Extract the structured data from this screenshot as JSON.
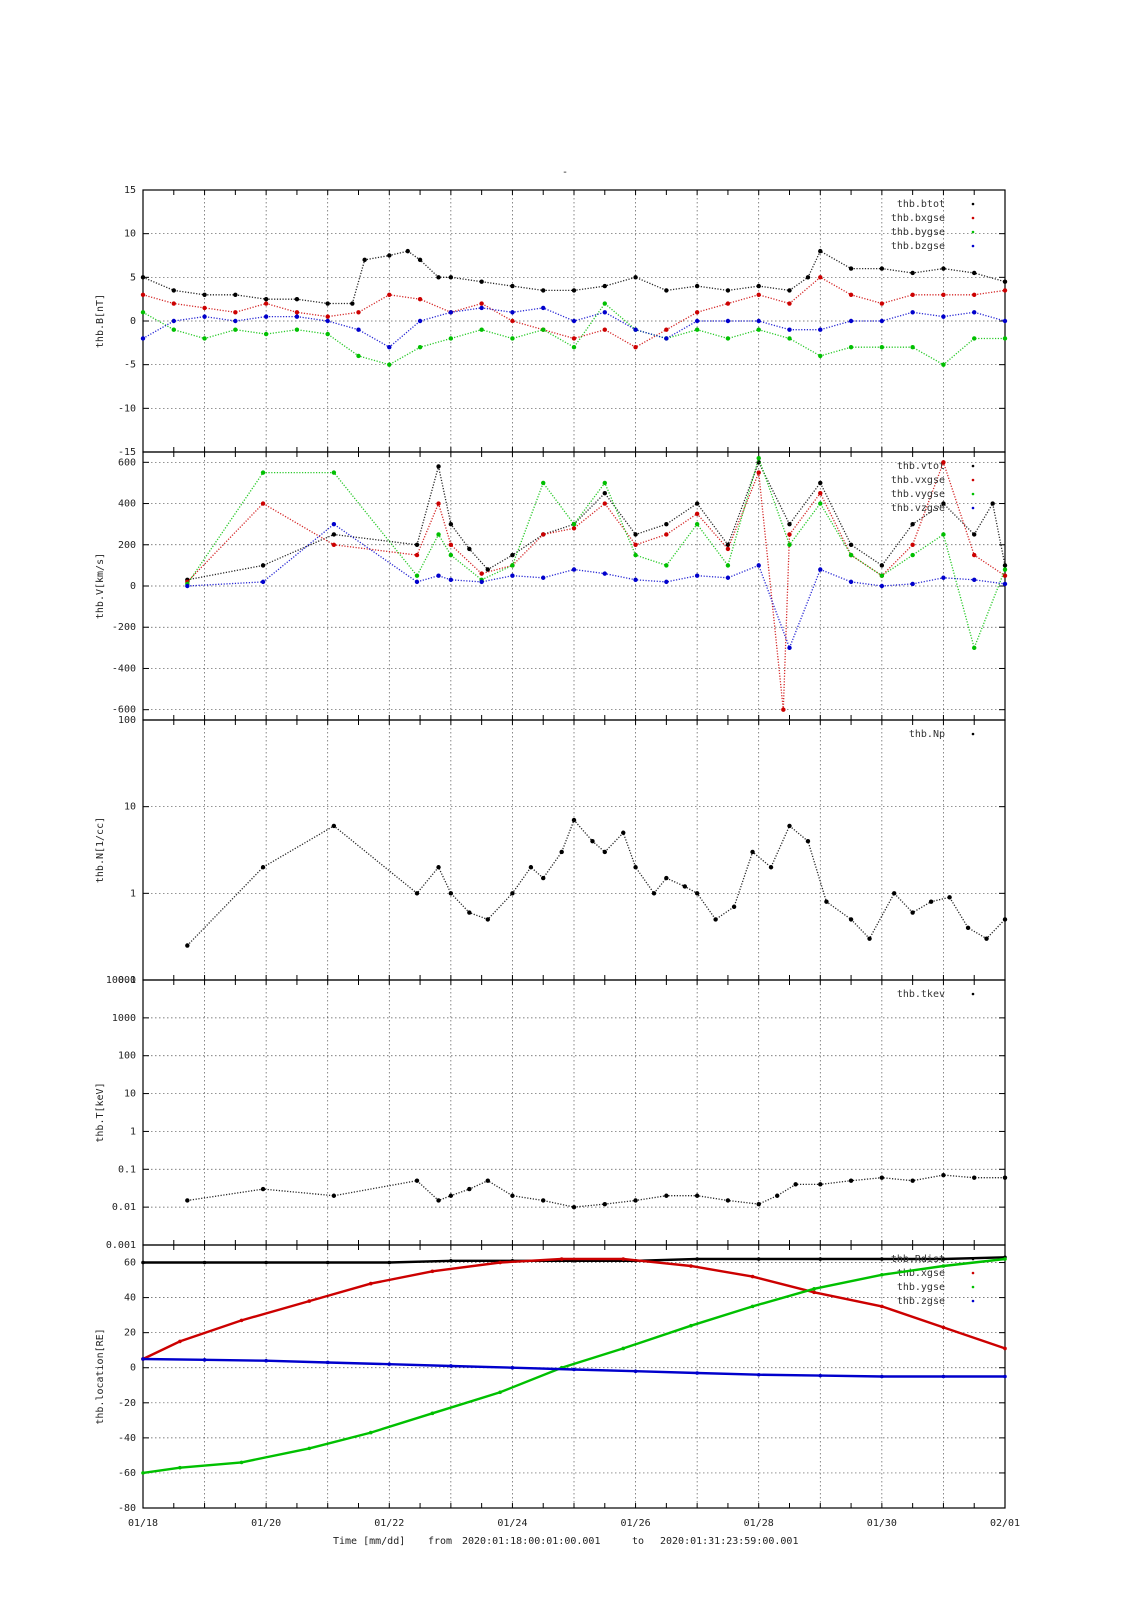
{
  "figure": {
    "top_title": "-",
    "footer": {
      "time_label": "Time [mm/dd]",
      "from_label": "from",
      "from_value": "2020:01:18:00:01:00.001",
      "to_label": "to",
      "to_value": "2020:01:31:23:59:00.001"
    },
    "x_tick_labels": [
      "01/18",
      "01/20",
      "01/22",
      "01/24",
      "01/26",
      "01/28",
      "01/30",
      "02/01"
    ]
  },
  "colors": {
    "black": "#000000",
    "red": "#cc0000",
    "green": "#00c000",
    "blue": "#0000cc",
    "grid": "#555555"
  },
  "chart_data": [
    {
      "type": "scatter",
      "ylabel": "thb.B[nT]",
      "ylim": [
        -15,
        15
      ],
      "yscale": "linear",
      "yticks": [
        15,
        10,
        5,
        0,
        -5,
        -10,
        -15
      ],
      "xlim_days": [
        18,
        32
      ],
      "grid": true,
      "legend_position": "top-right",
      "series": [
        {
          "name": "thb.btot",
          "color": "black",
          "x": [
            18.0,
            18.5,
            19.0,
            19.5,
            20.0,
            20.5,
            21.0,
            21.4,
            21.6,
            22.0,
            22.3,
            22.5,
            22.8,
            23.0,
            23.5,
            24.0,
            24.5,
            25.0,
            25.5,
            26.0,
            26.5,
            27.0,
            27.5,
            28.0,
            28.5,
            28.8,
            29.0,
            29.5,
            30.0,
            30.5,
            31.0,
            31.5,
            32.0
          ],
          "y": [
            5,
            3.5,
            3,
            3,
            2.5,
            2.5,
            2,
            2,
            7,
            7.5,
            8,
            7,
            5,
            5,
            4.5,
            4,
            3.5,
            3.5,
            4,
            5,
            3.5,
            4,
            3.5,
            4,
            3.5,
            5,
            8,
            6,
            6,
            5.5,
            6,
            5.5,
            4.5
          ]
        },
        {
          "name": "thb.bxgse",
          "color": "red",
          "x": [
            18.0,
            18.5,
            19.0,
            19.5,
            20.0,
            20.5,
            21.0,
            21.5,
            22.0,
            22.5,
            23.0,
            23.5,
            24.0,
            24.5,
            25.0,
            25.5,
            26.0,
            26.5,
            27.0,
            27.5,
            28.0,
            28.5,
            29.0,
            29.5,
            30.0,
            30.5,
            31.0,
            31.5,
            32.0
          ],
          "y": [
            3,
            2,
            1.5,
            1,
            2,
            1,
            0.5,
            1,
            3,
            2.5,
            1,
            2,
            0,
            -1,
            -2,
            -1,
            -3,
            -1,
            1,
            2,
            3,
            2,
            5,
            3,
            2,
            3,
            3,
            3,
            3.5
          ]
        },
        {
          "name": "thb.bygse",
          "color": "green",
          "x": [
            18.0,
            18.5,
            19.0,
            19.5,
            20.0,
            20.5,
            21.0,
            21.5,
            22.0,
            22.5,
            23.0,
            23.5,
            24.0,
            24.5,
            25.0,
            25.5,
            26.0,
            26.5,
            27.0,
            27.5,
            28.0,
            28.5,
            29.0,
            29.5,
            30.0,
            30.5,
            31.0,
            31.5,
            32.0
          ],
          "y": [
            1,
            -1,
            -2,
            -1,
            -1.5,
            -1,
            -1.5,
            -4,
            -5,
            -3,
            -2,
            -1,
            -2,
            -1,
            -3,
            2,
            -1,
            -2,
            -1,
            -2,
            -1,
            -2,
            -4,
            -3,
            -3,
            -3,
            -5,
            -2,
            -2
          ]
        },
        {
          "name": "thb.bzgse",
          "color": "blue",
          "x": [
            18.0,
            18.5,
            19.0,
            19.5,
            20.0,
            20.5,
            21.0,
            21.5,
            22.0,
            22.5,
            23.0,
            23.5,
            24.0,
            24.5,
            25.0,
            25.5,
            26.0,
            26.5,
            27.0,
            27.5,
            28.0,
            28.5,
            29.0,
            29.5,
            30.0,
            30.5,
            31.0,
            31.5,
            32.0
          ],
          "y": [
            -2,
            0,
            0.5,
            0,
            0.5,
            0.5,
            0,
            -1,
            -3,
            0,
            1,
            1.5,
            1,
            1.5,
            0,
            1,
            -1,
            -2,
            0,
            0,
            0,
            -1,
            -1,
            0,
            0,
            1,
            0.5,
            1,
            0
          ]
        }
      ]
    },
    {
      "type": "scatter",
      "ylabel": "thb.V[km/s]",
      "ylim": [
        -650,
        650
      ],
      "yscale": "linear",
      "yticks": [
        600,
        400,
        200,
        0,
        -200,
        -400,
        -600
      ],
      "xlim_days": [
        18,
        32
      ],
      "grid": true,
      "legend_position": "top-right",
      "series": [
        {
          "name": "thb.vtot",
          "color": "black",
          "x": [
            18.72,
            19.95,
            21.1,
            22.45,
            22.8,
            23.0,
            23.3,
            23.6,
            24.0,
            24.5,
            25.0,
            25.5,
            26.0,
            26.5,
            27.0,
            27.5,
            28.0,
            28.5,
            29.0,
            29.5,
            30.0,
            30.5,
            31.0,
            31.5,
            31.8,
            32.0
          ],
          "y": [
            30,
            100,
            250,
            200,
            580,
            300,
            180,
            80,
            150,
            250,
            300,
            450,
            250,
            300,
            400,
            200,
            600,
            300,
            500,
            200,
            100,
            300,
            400,
            250,
            400,
            100
          ]
        },
        {
          "name": "thb.vxgse",
          "color": "red",
          "x": [
            18.72,
            19.95,
            21.1,
            22.45,
            22.8,
            23.0,
            23.5,
            24.0,
            24.5,
            25.0,
            25.5,
            26.0,
            26.5,
            27.0,
            27.5,
            28.0,
            28.4,
            28.5,
            29.0,
            29.5,
            30.0,
            30.5,
            31.0,
            31.5,
            32.0
          ],
          "y": [
            20,
            400,
            200,
            150,
            400,
            200,
            60,
            100,
            250,
            280,
            400,
            200,
            250,
            350,
            180,
            550,
            -600,
            250,
            450,
            150,
            50,
            200,
            600,
            150,
            50
          ]
        },
        {
          "name": "thb.vygse",
          "color": "green",
          "x": [
            18.72,
            19.95,
            21.1,
            22.45,
            22.8,
            23.0,
            23.5,
            24.0,
            24.5,
            25.0,
            25.5,
            26.0,
            26.5,
            27.0,
            27.5,
            28.0,
            28.5,
            29.0,
            29.5,
            30.0,
            30.5,
            31.0,
            31.5,
            32.0
          ],
          "y": [
            10,
            550,
            550,
            50,
            250,
            150,
            30,
            100,
            500,
            300,
            500,
            150,
            100,
            300,
            100,
            620,
            200,
            400,
            150,
            50,
            150,
            250,
            -300,
            80
          ]
        },
        {
          "name": "thb.vzgse",
          "color": "blue",
          "x": [
            18.72,
            19.95,
            21.1,
            22.45,
            22.8,
            23.0,
            23.5,
            24.0,
            24.5,
            25.0,
            25.5,
            26.0,
            26.5,
            27.0,
            27.5,
            28.0,
            28.5,
            29.0,
            29.5,
            30.0,
            30.5,
            31.0,
            31.5,
            32.0
          ],
          "y": [
            0,
            20,
            300,
            20,
            50,
            30,
            20,
            50,
            40,
            80,
            60,
            30,
            20,
            50,
            40,
            100,
            -300,
            80,
            20,
            0,
            10,
            40,
            30,
            10
          ]
        }
      ]
    },
    {
      "type": "scatter",
      "ylabel": "thb.N[1/cc]",
      "ylim": [
        0.1,
        100
      ],
      "yscale": "log",
      "yticks": [
        100,
        10,
        1,
        0.1
      ],
      "xlim_days": [
        18,
        32
      ],
      "grid": true,
      "legend_position": "top-right",
      "series": [
        {
          "name": "thb.Np",
          "color": "black",
          "x": [
            18.72,
            19.95,
            21.1,
            22.45,
            22.8,
            23.0,
            23.3,
            23.6,
            24.0,
            24.3,
            24.5,
            24.8,
            25.0,
            25.3,
            25.5,
            25.8,
            26.0,
            26.3,
            26.5,
            26.8,
            27.0,
            27.3,
            27.6,
            27.9,
            28.2,
            28.5,
            28.8,
            29.1,
            29.5,
            29.8,
            30.2,
            30.5,
            30.8,
            31.1,
            31.4,
            31.7,
            32.0
          ],
          "y": [
            0.25,
            2,
            6,
            1,
            2,
            1,
            0.6,
            0.5,
            1,
            2,
            1.5,
            3,
            7,
            4,
            3,
            5,
            2,
            1,
            1.5,
            1.2,
            1,
            0.5,
            0.7,
            3,
            2,
            6,
            4,
            0.8,
            0.5,
            0.3,
            1,
            0.6,
            0.8,
            0.9,
            0.4,
            0.3,
            0.5
          ]
        }
      ]
    },
    {
      "type": "scatter",
      "ylabel": "thb.T[keV]",
      "ylim": [
        0.001,
        10000
      ],
      "yscale": "log",
      "yticks": [
        10000,
        1000,
        100,
        10,
        1,
        0.1,
        0.01,
        0.001
      ],
      "xlim_days": [
        18,
        32
      ],
      "grid": true,
      "legend_position": "top-right",
      "series": [
        {
          "name": "thb.tkev",
          "color": "black",
          "x": [
            18.72,
            19.95,
            21.1,
            22.45,
            22.8,
            23.0,
            23.3,
            23.6,
            24.0,
            24.5,
            25.0,
            25.5,
            26.0,
            26.5,
            27.0,
            27.5,
            28.0,
            28.3,
            28.6,
            29.0,
            29.5,
            30.0,
            30.5,
            31.0,
            31.5,
            32.0
          ],
          "y": [
            0.015,
            0.03,
            0.02,
            0.05,
            0.015,
            0.02,
            0.03,
            0.05,
            0.02,
            0.015,
            0.01,
            0.012,
            0.015,
            0.02,
            0.02,
            0.015,
            0.012,
            0.02,
            0.04,
            0.04,
            0.05,
            0.06,
            0.05,
            0.07,
            0.06,
            0.06
          ]
        }
      ]
    },
    {
      "type": "line",
      "ylabel": "thb.location[RE]",
      "ylim": [
        -80,
        70
      ],
      "yscale": "linear",
      "yticks": [
        60,
        40,
        20,
        0,
        -20,
        -40,
        -60,
        -80
      ],
      "xlim_days": [
        18,
        32
      ],
      "grid": true,
      "legend_position": "top-right",
      "series": [
        {
          "name": "thb.Rdist",
          "color": "black",
          "x": [
            18,
            19,
            20,
            21,
            22,
            23,
            24,
            25,
            26,
            27,
            28,
            29,
            30,
            31,
            32
          ],
          "y": [
            60,
            60,
            60,
            60,
            60,
            61,
            61,
            61,
            61,
            62,
            62,
            62,
            62,
            62,
            63
          ]
        },
        {
          "name": "thb.xgse",
          "color": "red",
          "x": [
            18,
            18.6,
            19.6,
            20.7,
            21.7,
            22.7,
            23.8,
            24.8,
            25.8,
            26.9,
            27.9,
            28.9,
            30.0,
            31.0,
            32.0
          ],
          "y": [
            5,
            15,
            27,
            38,
            48,
            55,
            60,
            62,
            62,
            58,
            52,
            43,
            35,
            23,
            11
          ]
        },
        {
          "name": "thb.ygse",
          "color": "green",
          "x": [
            18,
            18.6,
            19.6,
            20.7,
            21.7,
            22.7,
            23.8,
            24.8,
            25.8,
            26.9,
            27.9,
            28.9,
            30.0,
            31.0,
            32.0
          ],
          "y": [
            -60,
            -57,
            -54,
            -46,
            -37,
            -26,
            -14,
            0,
            11,
            24,
            35,
            45,
            53,
            58,
            62
          ]
        },
        {
          "name": "thb.zgse",
          "color": "blue",
          "x": [
            18,
            19,
            20,
            21,
            22,
            23,
            24,
            25,
            26,
            27,
            28,
            29,
            30,
            31,
            32
          ],
          "y": [
            5,
            4.5,
            4,
            3,
            2,
            1,
            0,
            -1,
            -2,
            -3,
            -4,
            -4.5,
            -5,
            -5,
            -5
          ]
        }
      ]
    }
  ]
}
